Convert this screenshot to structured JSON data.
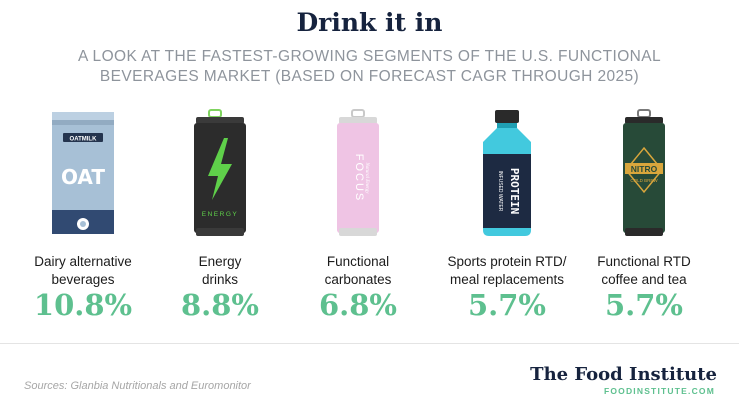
{
  "title": "Drink it in",
  "subtitle": [
    "A LOOK AT THE FASTEST-GROWING SEGMENTS OF THE U.S. FUNCTIONAL",
    "BEVERAGES MARKET (BASED ON FORECAST CAGR THROUGH 2025)"
  ],
  "chart_data": {
    "type": "bar",
    "title": "Drink it in",
    "subtitle": "A LOOK AT THE FASTEST-GROWING SEGMENTS OF THE U.S. FUNCTIONAL BEVERAGES MARKET (BASED ON FORECAST CAGR THROUGH 2025)",
    "categories": [
      [
        "Dairy alternative",
        "beverages"
      ],
      [
        "Energy",
        "drinks"
      ],
      [
        "Functional",
        "carbonates"
      ],
      [
        "Sports protein RTD/",
        "meal replacements"
      ],
      [
        "Functional RTD",
        "coffee and tea"
      ]
    ],
    "values": [
      10.8,
      8.8,
      6.8,
      5.7,
      5.7
    ],
    "value_labels": [
      "10.8%",
      "8.8%",
      "6.8%",
      "5.7%",
      "5.7%"
    ],
    "unit": "%"
  },
  "product_text": {
    "oat_top": "OATMILK",
    "oat_main": "OAT",
    "energy": "ENERGY",
    "focus": "FOCUS",
    "focus_sub": "Natural Energy",
    "protein": "PROTEIN",
    "protein_sub": "INFUSED WATER",
    "nitro": "NITRO",
    "nitro_sub": "COLD BREW"
  },
  "colors": {
    "title": "#16233e",
    "value": "#5ec08f",
    "oat": "#a7c0d6",
    "energy": "#2c2c2c",
    "bolt": "#5fd04a",
    "focus": "#efc4e4",
    "protein": "#42c9de",
    "nitro": "#274a38",
    "gold": "#d9a63c"
  },
  "source": "Sources: Glanbia Nutritionals and Euromonitor",
  "logo": {
    "name": "The Food Institute",
    "url": "FOODINSTITUTE.COM"
  }
}
